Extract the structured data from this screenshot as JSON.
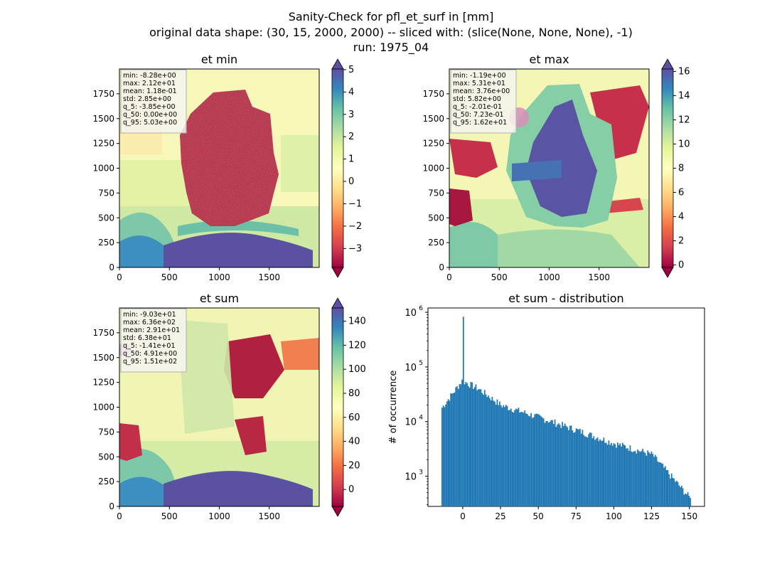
{
  "figure": {
    "title_line1": "Sanity-Check for pfl_et_surf in [mm]",
    "title_line2": "original data shape: (30, 15, 2000, 2000) -- sliced with: (slice(None, None, None), -1)",
    "title_line3": "run: 1975_04"
  },
  "chart_data": [
    {
      "type": "heatmap",
      "title": "et min",
      "x_ticks": [
        0,
        500,
        1000,
        1500
      ],
      "y_ticks": [
        0,
        250,
        500,
        750,
        1000,
        1250,
        1500,
        1750
      ],
      "xlim": [
        0,
        2000
      ],
      "ylim": [
        0,
        2000
      ],
      "colorbar": {
        "ticks": [
          -3,
          -2,
          -1,
          0,
          1,
          2,
          3,
          4,
          5
        ],
        "tick_labels": [
          "−3",
          "−2",
          "−1",
          "0",
          "1",
          "2",
          "3",
          "4",
          "5"
        ],
        "range": [
          -3.85,
          5.03
        ],
        "cmap": "Spectral"
      },
      "stats": [
        "min: -8.28e+00",
        "max: 2.12e+01",
        "mean: 1.18e-01",
        "std: 2.85e+00",
        "q_5: -3.85e+00",
        "q_50: 0.00e+00",
        "q_95: 5.03e+00"
      ]
    },
    {
      "type": "heatmap",
      "title": "et max",
      "x_ticks": [
        0,
        500,
        1000,
        1500
      ],
      "y_ticks": [
        0,
        250,
        500,
        750,
        1000,
        1250,
        1500,
        1750
      ],
      "xlim": [
        0,
        2000
      ],
      "ylim": [
        0,
        2000
      ],
      "colorbar": {
        "ticks": [
          0,
          2,
          4,
          6,
          8,
          10,
          12,
          14,
          16
        ],
        "tick_labels": [
          "0",
          "2",
          "4",
          "6",
          "8",
          "10",
          "12",
          "14",
          "16"
        ],
        "range": [
          -0.2,
          16.2
        ],
        "cmap": "Spectral"
      },
      "stats": [
        "min: -1.19e+00",
        "max: 5.31e+01",
        "mean: 3.76e+00",
        "std: 5.82e+00",
        "q_5: -2.01e-01",
        "q_50: 7.23e-01",
        "q_95: 1.62e+01"
      ]
    },
    {
      "type": "heatmap",
      "title": "et sum",
      "x_ticks": [
        0,
        500,
        1000,
        1500
      ],
      "y_ticks": [
        0,
        250,
        500,
        750,
        1000,
        1250,
        1500,
        1750
      ],
      "xlim": [
        0,
        2000
      ],
      "ylim": [
        0,
        2000
      ],
      "colorbar": {
        "ticks": [
          0,
          20,
          40,
          60,
          80,
          100,
          120,
          140
        ],
        "tick_labels": [
          "0",
          "20",
          "40",
          "60",
          "80",
          "100",
          "120",
          "140"
        ],
        "range": [
          -14.1,
          151
        ],
        "cmap": "Spectral"
      },
      "stats": [
        "min: -9.03e+01",
        "max: 6.36e+02",
        "mean: 2.91e+01",
        "std: 6.38e+01",
        "q_5: -1.41e+01",
        "q_50: 4.91e+00",
        "q_95: 1.51e+02"
      ]
    },
    {
      "type": "bar",
      "title": "et sum - distribution",
      "ylabel": "# of occurrence",
      "xlabel": "",
      "yscale": "log",
      "xlim": [
        -23,
        160
      ],
      "ylim": [
        280,
        1200000
      ],
      "x_ticks": [
        0,
        25,
        50,
        75,
        100,
        125,
        150
      ],
      "y_ticks": [
        1000,
        10000,
        100000,
        1000000
      ],
      "y_tick_labels": [
        {
          "base": "10",
          "exp": "3"
        },
        {
          "base": "10",
          "exp": "4"
        },
        {
          "base": "10",
          "exp": "5"
        },
        {
          "base": "10",
          "exp": "6"
        }
      ],
      "color": "#1f77b4",
      "x": [
        -14.1,
        0,
        10,
        25,
        50,
        75,
        100,
        125,
        150
      ],
      "values": [
        18000,
        830000,
        40000,
        20000,
        12000,
        7000,
        4000,
        2500,
        400
      ]
    }
  ]
}
